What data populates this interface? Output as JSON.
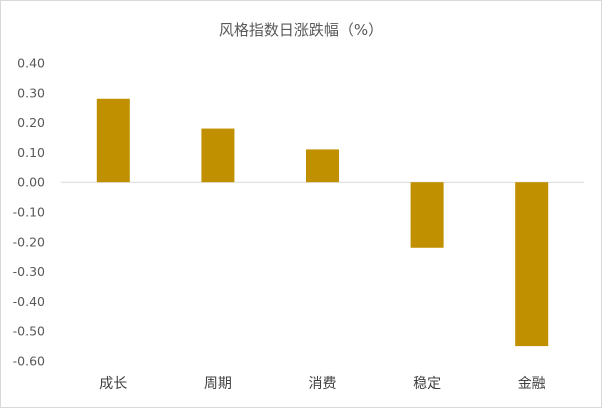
{
  "chart_data": {
    "type": "bar",
    "title": "风格指数日涨跌幅（%）",
    "categories": [
      "成长",
      "周期",
      "消费",
      "稳定",
      "金融"
    ],
    "values": [
      0.28,
      0.18,
      0.11,
      -0.22,
      -0.55
    ],
    "ylim": [
      -0.6,
      0.4
    ],
    "yticks": [
      0.4,
      0.3,
      0.2,
      0.1,
      0.0,
      -0.1,
      -0.2,
      -0.3,
      -0.4,
      -0.5,
      -0.6
    ],
    "ytick_labels": [
      "0.40",
      "0.30",
      "0.20",
      "0.10",
      "0.00",
      "-0.10",
      "-0.20",
      "-0.30",
      "-0.40",
      "-0.50",
      "-0.60"
    ],
    "xlabel": "",
    "ylabel": "",
    "grid": false,
    "bar_color": "#C09000",
    "axis_color": "#d9d9d9"
  }
}
